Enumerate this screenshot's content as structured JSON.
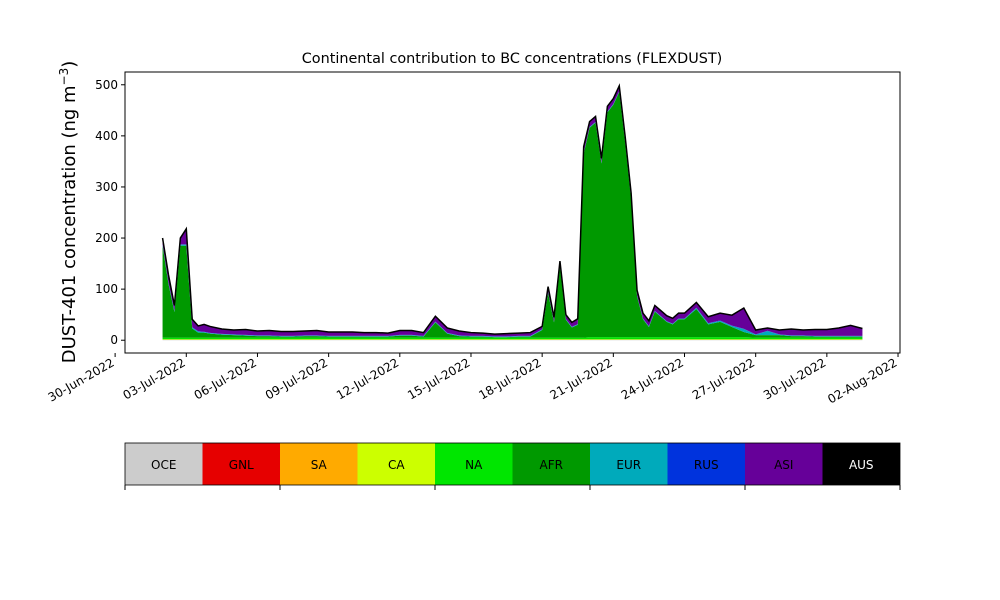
{
  "chart_data": {
    "type": "area",
    "stacked": true,
    "title": "Continental contribution to BC concentrations (FLEXDUST)",
    "ylabel_main": "DUST-401 concentration (ng m",
    "ylabel_exp": "−3",
    "ylabel_close": ")",
    "xlabel": "",
    "x_start": "2022-07-02",
    "x_end": "2022-07-31",
    "ylim": [
      -25,
      525
    ],
    "xlim": [
      "2022-06-30 10:00",
      "2022-08-02 02:00"
    ],
    "yticks": [
      0,
      100,
      200,
      300,
      400,
      500
    ],
    "xticks": [
      {
        "date": "2022-06-30",
        "label": "30-Jun-2022"
      },
      {
        "date": "2022-07-03",
        "label": "03-Jul-2022"
      },
      {
        "date": "2022-07-06",
        "label": "06-Jul-2022"
      },
      {
        "date": "2022-07-09",
        "label": "09-Jul-2022"
      },
      {
        "date": "2022-07-12",
        "label": "12-Jul-2022"
      },
      {
        "date": "2022-07-15",
        "label": "15-Jul-2022"
      },
      {
        "date": "2022-07-18",
        "label": "18-Jul-2022"
      },
      {
        "date": "2022-07-21",
        "label": "21-Jul-2022"
      },
      {
        "date": "2022-07-24",
        "label": "24-Jul-2022"
      },
      {
        "date": "2022-07-27",
        "label": "27-Jul-2022"
      },
      {
        "date": "2022-07-30",
        "label": "30-Jul-2022"
      },
      {
        "date": "2022-08-02",
        "label": "02-Aug-2022"
      }
    ],
    "x": [
      "2022-07-02 00:00",
      "2022-07-02 06:00",
      "2022-07-02 12:00",
      "2022-07-02 18:00",
      "2022-07-03 00:00",
      "2022-07-03 06:00",
      "2022-07-03 12:00",
      "2022-07-03 18:00",
      "2022-07-04 00:00",
      "2022-07-04 12:00",
      "2022-07-05 00:00",
      "2022-07-05 12:00",
      "2022-07-06 00:00",
      "2022-07-06 12:00",
      "2022-07-07 00:00",
      "2022-07-07 12:00",
      "2022-07-08 00:00",
      "2022-07-08 12:00",
      "2022-07-09 00:00",
      "2022-07-09 12:00",
      "2022-07-10 00:00",
      "2022-07-10 12:00",
      "2022-07-11 00:00",
      "2022-07-11 12:00",
      "2022-07-12 00:00",
      "2022-07-12 12:00",
      "2022-07-13 00:00",
      "2022-07-13 12:00",
      "2022-07-14 00:00",
      "2022-07-14 12:00",
      "2022-07-15 00:00",
      "2022-07-15 12:00",
      "2022-07-16 00:00",
      "2022-07-16 12:00",
      "2022-07-17 00:00",
      "2022-07-17 12:00",
      "2022-07-18 00:00",
      "2022-07-18 06:00",
      "2022-07-18 12:00",
      "2022-07-18 18:00",
      "2022-07-19 00:00",
      "2022-07-19 06:00",
      "2022-07-19 12:00",
      "2022-07-19 18:00",
      "2022-07-20 00:00",
      "2022-07-20 06:00",
      "2022-07-20 12:00",
      "2022-07-20 18:00",
      "2022-07-21 00:00",
      "2022-07-21 06:00",
      "2022-07-21 12:00",
      "2022-07-21 18:00",
      "2022-07-22 00:00",
      "2022-07-22 06:00",
      "2022-07-22 12:00",
      "2022-07-22 18:00",
      "2022-07-23 00:00",
      "2022-07-23 06:00",
      "2022-07-23 12:00",
      "2022-07-23 18:00",
      "2022-07-24 00:00",
      "2022-07-24 12:00",
      "2022-07-25 00:00",
      "2022-07-25 12:00",
      "2022-07-26 00:00",
      "2022-07-26 12:00",
      "2022-07-27 00:00",
      "2022-07-27 12:00",
      "2022-07-28 00:00",
      "2022-07-28 12:00",
      "2022-07-29 00:00",
      "2022-07-29 12:00",
      "2022-07-30 00:00",
      "2022-07-30 12:00",
      "2022-07-31 00:00",
      "2022-07-31 12:00"
    ],
    "series": [
      {
        "name": "OCE",
        "color": "#cccccc",
        "values": [
          0.5,
          0.5,
          0.5,
          0.5,
          0.5,
          0.5,
          0.5,
          0.5,
          0.5,
          0.5,
          0.5,
          0.5,
          0.5,
          0.5,
          0.5,
          0.5,
          0.5,
          0.5,
          0.5,
          0.5,
          0.5,
          0.5,
          0.5,
          0.5,
          0.5,
          0.5,
          0.5,
          0.5,
          0.5,
          0.5,
          0.5,
          0.5,
          0.5,
          0.5,
          0.5,
          0.5,
          0.5,
          0.5,
          0.5,
          0.5,
          0.5,
          0.5,
          0.5,
          0.5,
          0.5,
          0.5,
          0.5,
          0.5,
          0.5,
          0.5,
          0.5,
          0.5,
          0.5,
          0.5,
          0.5,
          0.5,
          0.5,
          0.5,
          0.5,
          0.5,
          0.5,
          0.5,
          0.5,
          0.5,
          0.5,
          0.5,
          0.5,
          0.5,
          0.5,
          0.5,
          0.5,
          0.5,
          0.5,
          0.5,
          0.5,
          0.5
        ]
      },
      {
        "name": "GNL",
        "color": "#e60000",
        "values": [
          0.2,
          0.2,
          0.2,
          0.2,
          0.2,
          0.2,
          0.2,
          0.2,
          0.2,
          0.2,
          0.2,
          0.2,
          0.2,
          0.2,
          0.2,
          0.2,
          0.2,
          0.2,
          0.2,
          0.2,
          0.2,
          0.2,
          0.2,
          0.2,
          0.2,
          0.2,
          0.2,
          0.2,
          0.2,
          0.2,
          0.2,
          0.2,
          0.2,
          0.2,
          0.2,
          0.2,
          0.2,
          0.2,
          0.2,
          0.2,
          0.2,
          0.2,
          0.2,
          0.2,
          0.2,
          0.2,
          0.2,
          0.2,
          0.2,
          0.2,
          0.2,
          0.2,
          0.2,
          0.2,
          0.2,
          0.2,
          0.2,
          0.2,
          0.2,
          0.2,
          0.2,
          0.2,
          0.2,
          0.2,
          0.2,
          0.2,
          0.2,
          0.2,
          0.2,
          0.2,
          0.2,
          0.2,
          0.2,
          0.2,
          0.2,
          0.2
        ]
      },
      {
        "name": "SA",
        "color": "#ffaa00",
        "values": [
          0.3,
          0.3,
          0.3,
          0.3,
          0.3,
          0.3,
          0.3,
          0.3,
          0.3,
          0.3,
          0.3,
          0.3,
          0.3,
          0.3,
          0.3,
          0.3,
          0.3,
          0.3,
          0.3,
          0.3,
          0.3,
          0.3,
          0.3,
          0.3,
          0.3,
          0.3,
          0.3,
          0.3,
          0.3,
          0.3,
          0.3,
          0.3,
          0.3,
          0.3,
          0.3,
          0.3,
          0.3,
          0.3,
          0.3,
          0.3,
          0.3,
          0.3,
          0.3,
          0.3,
          0.3,
          0.3,
          0.3,
          0.3,
          0.3,
          0.3,
          0.3,
          0.3,
          0.3,
          0.3,
          0.3,
          0.3,
          0.3,
          0.3,
          0.3,
          0.3,
          0.3,
          0.3,
          0.3,
          0.3,
          0.3,
          0.3,
          0.3,
          0.3,
          0.3,
          0.3,
          0.3,
          0.3,
          0.3,
          0.3,
          0.3,
          0.3
        ]
      },
      {
        "name": "CA",
        "color": "#ccff00",
        "values": [
          1,
          1,
          1,
          1,
          1,
          1,
          1,
          1,
          1,
          1,
          1,
          1,
          1,
          1,
          1,
          1,
          1,
          1,
          1,
          1,
          1,
          1,
          1,
          1,
          1,
          1,
          1,
          1,
          1,
          1,
          1,
          1,
          1,
          1,
          1,
          1,
          1,
          1,
          1,
          1,
          1,
          1,
          1,
          1,
          1,
          1,
          1,
          1,
          1,
          1,
          1,
          1,
          1,
          1,
          1,
          1,
          1,
          1,
          1,
          1,
          1,
          1,
          1,
          1,
          1,
          1,
          1,
          1,
          1,
          1,
          1,
          1,
          1,
          1,
          1,
          1
        ]
      },
      {
        "name": "NA",
        "color": "#00e600",
        "values": [
          3,
          3,
          3,
          3,
          3,
          3,
          3,
          3,
          3,
          3,
          3,
          3,
          3,
          3,
          3,
          3,
          3,
          3,
          3,
          3,
          3,
          3,
          3,
          3,
          3,
          3,
          3,
          3,
          3,
          3,
          3,
          3,
          3,
          3,
          3,
          3,
          3,
          3,
          3,
          3,
          3,
          3,
          3,
          3,
          4,
          4,
          4,
          4,
          4,
          4,
          4,
          4,
          4,
          4,
          4,
          4,
          4,
          4,
          4,
          4,
          4,
          4,
          4,
          4,
          4,
          4,
          3,
          3,
          3,
          3,
          3,
          3,
          3,
          3,
          3,
          3
        ]
      },
      {
        "name": "AFR",
        "color": "#009900",
        "values": [
          180,
          105,
          50,
          180,
          180,
          18,
          10,
          10,
          8,
          6,
          5,
          4,
          3,
          3,
          2,
          2,
          3,
          3,
          2,
          2,
          2,
          2,
          2,
          2,
          4,
          4,
          2,
          30,
          8,
          3,
          2,
          2,
          1,
          1,
          2,
          2,
          15,
          88,
          30,
          140,
          35,
          20,
          25,
          360,
          410,
          420,
          340,
          440,
          455,
          480,
          380,
          270,
          80,
          35,
          20,
          50,
          40,
          30,
          25,
          35,
          35,
          55,
          25,
          30,
          20,
          10,
          5,
          5,
          5,
          3,
          3,
          2,
          2,
          2,
          2,
          2
        ]
      },
      {
        "name": "EUR",
        "color": "#00aabb",
        "values": [
          2,
          2,
          2,
          2,
          2,
          2,
          2,
          1,
          1,
          1,
          1,
          1,
          1,
          1,
          1,
          1,
          1,
          1,
          1,
          1,
          1,
          1,
          1,
          1,
          1,
          1,
          1,
          1,
          1,
          1,
          1,
          1,
          1,
          1,
          1,
          1,
          1,
          1,
          1,
          1,
          1,
          1,
          1,
          1,
          1,
          1,
          1,
          1,
          1,
          1,
          1,
          1,
          1,
          1,
          1,
          1,
          1,
          1,
          1,
          1,
          1,
          2,
          2,
          2,
          2,
          6,
          1,
          8,
          1,
          1,
          1,
          1,
          1,
          1,
          1,
          1
        ]
      },
      {
        "name": "RUS",
        "color": "#0033dd",
        "values": [
          0.5,
          0.5,
          0.5,
          0.5,
          0.5,
          0.5,
          0.5,
          0.5,
          0.5,
          0.5,
          0.5,
          0.5,
          0.5,
          0.5,
          0.5,
          0.5,
          0.5,
          0.5,
          0.5,
          0.5,
          0.5,
          0.5,
          0.5,
          0.5,
          0.5,
          0.5,
          0.5,
          0.5,
          0.5,
          0.5,
          0.5,
          0.5,
          0.5,
          0.5,
          0.5,
          0.5,
          0.5,
          0.5,
          0.5,
          0.5,
          0.5,
          0.5,
          0.5,
          0.5,
          0.5,
          0.5,
          0.5,
          0.5,
          0.5,
          0.5,
          0.5,
          0.5,
          0.5,
          0.5,
          0.5,
          0.5,
          0.5,
          0.5,
          0.5,
          0.5,
          0.5,
          0.5,
          0.5,
          0.5,
          0.5,
          0.5,
          0.5,
          0.5,
          0.5,
          0.5,
          0.5,
          0.5,
          0.5,
          0.5,
          0.5,
          0.5
        ]
      },
      {
        "name": "ASI",
        "color": "#660099",
        "values": [
          12,
          15,
          10,
          12,
          30,
          15,
          10,
          14,
          12,
          9,
          8,
          10,
          8,
          9,
          8,
          8,
          8,
          9,
          7,
          7,
          7,
          6,
          6,
          5,
          8,
          8,
          6,
          10,
          9,
          8,
          6,
          5,
          4,
          5,
          5,
          6,
          5,
          10,
          8,
          8,
          8,
          8,
          10,
          12,
          10,
          10,
          8,
          10,
          10,
          10,
          10,
          10,
          10,
          10,
          10,
          10,
          10,
          10,
          10,
          10,
          10,
          10,
          12,
          14,
          20,
          40,
          8,
          5,
          8,
          12,
          10,
          12,
          12,
          15,
          20,
          14
        ]
      },
      {
        "name": "AUS",
        "color": "#000000",
        "values": [
          0.5,
          0.5,
          0.5,
          0.5,
          0.5,
          0.5,
          0.5,
          0.5,
          0.5,
          0.5,
          0.5,
          0.5,
          0.5,
          0.5,
          0.5,
          0.5,
          0.5,
          0.5,
          0.5,
          0.5,
          0.5,
          0.5,
          0.5,
          0.5,
          0.5,
          0.5,
          0.5,
          0.5,
          0.5,
          0.5,
          0.5,
          0.5,
          0.5,
          0.5,
          0.5,
          0.5,
          0.5,
          0.5,
          0.5,
          0.5,
          0.5,
          0.5,
          0.5,
          0.5,
          0.5,
          0.5,
          0.5,
          0.5,
          0.5,
          0.5,
          0.5,
          0.5,
          0.5,
          0.5,
          0.5,
          0.5,
          0.5,
          0.5,
          0.5,
          0.5,
          0.5,
          0.5,
          0.5,
          0.5,
          0.5,
          0.5,
          0.5,
          0.5,
          0.5,
          0.5,
          0.5,
          0.5,
          0.5,
          0.5,
          0.5,
          0.5
        ]
      }
    ],
    "legend": {
      "placement": "bottom-colorbar",
      "items": [
        {
          "label": "OCE",
          "color": "#cccccc"
        },
        {
          "label": "GNL",
          "color": "#e60000"
        },
        {
          "label": "SA",
          "color": "#ffaa00"
        },
        {
          "label": "CA",
          "color": "#ccff00"
        },
        {
          "label": "NA",
          "color": "#00e600"
        },
        {
          "label": "AFR",
          "color": "#009900"
        },
        {
          "label": "EUR",
          "color": "#00aabb"
        },
        {
          "label": "RUS",
          "color": "#0033dd"
        },
        {
          "label": "ASI",
          "color": "#660099"
        },
        {
          "label": "AUS",
          "color": "#000000",
          "text_color": "#ffffff"
        }
      ]
    },
    "grid": false
  }
}
